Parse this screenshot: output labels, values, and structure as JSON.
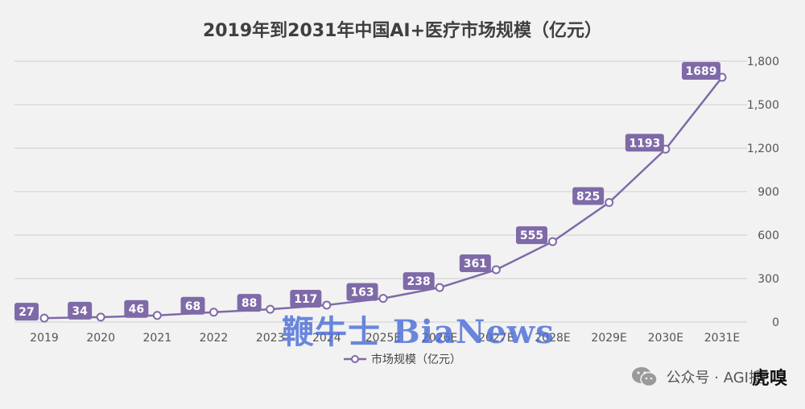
{
  "chart_data": {
    "type": "line",
    "title": "2019年到2031年中国AI+医疗市场规模（亿元）",
    "x": [
      "2019",
      "2020",
      "2021",
      "2022",
      "2023",
      "2024",
      "2025E",
      "2026E",
      "2027E",
      "2028E",
      "2029E",
      "2030E",
      "2031E"
    ],
    "series": [
      {
        "name": "市场规模（亿元）",
        "values": [
          27,
          34,
          46,
          68,
          88,
          117,
          163,
          238,
          361,
          555,
          825,
          1193,
          1689
        ]
      }
    ],
    "ylim": [
      0,
      1800
    ],
    "yticks": [
      0,
      300,
      600,
      900,
      1200,
      1500,
      1800
    ],
    "ytick_labels": [
      "0",
      "300",
      "600",
      "900",
      "1,200",
      "1,500",
      "1,800"
    ],
    "y_axis_side": "right",
    "grid": true,
    "legend_position": "bottom",
    "colors": {
      "line": "#7f6aa8",
      "label_bg": "#7f6aa8",
      "grid": "#cfcfcf",
      "background": "#f2f2f2"
    }
  },
  "watermark": {
    "text": "鞭牛士 BiaNews",
    "color": "#4b6ed7"
  },
  "footer": {
    "source_text": "公众号 · AGI搜",
    "brand": "虎嗅",
    "icon": "wechat-icon"
  }
}
